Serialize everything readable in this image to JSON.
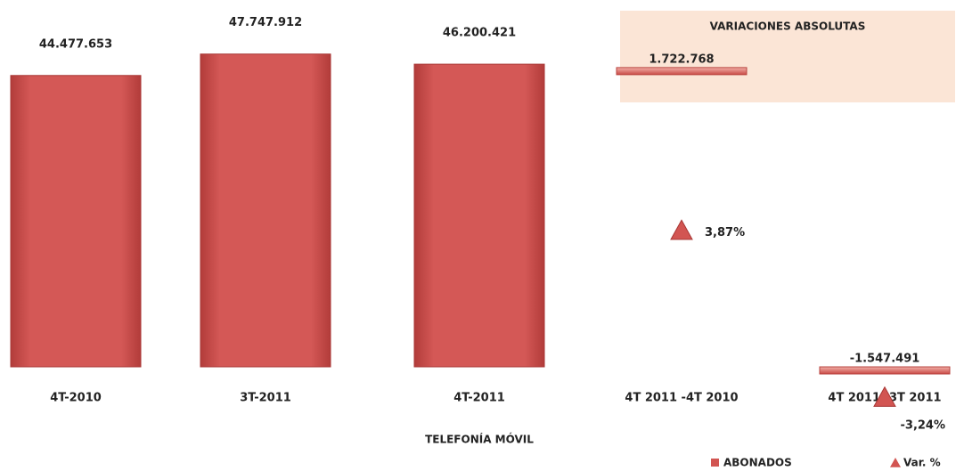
{
  "chart_data": [
    {
      "type": "bar",
      "x_label": "TELEFONÍA MÓVIL",
      "categories": [
        "4T-2010",
        "3T-2011",
        "4T-2011"
      ],
      "series": [
        {
          "name": "ABONADOS",
          "color": "#d25552",
          "values": [
            44477653,
            47747912,
            46200421
          ],
          "value_labels": [
            "44.477.653",
            "47.747.912",
            "46.200.421"
          ]
        }
      ],
      "ylim": [
        0,
        56000000
      ]
    },
    {
      "type": "variation",
      "title": "VARIACIONES ABSOLUTAS",
      "categories": [
        "4T 2011 -4T 2010",
        "4T 2011 -3T 2011"
      ],
      "series": [
        {
          "name": "ABONADOS",
          "color": "#d25552",
          "values": [
            1722768,
            -1547491
          ],
          "value_labels": [
            "1.722.768",
            "-1.547.491"
          ]
        },
        {
          "name": "Var. %",
          "color": "#d25552",
          "axis": "y2",
          "values": [
            3.87,
            -3.24
          ],
          "value_labels": [
            "3,87%",
            "-3,24%"
          ]
        }
      ],
      "ylim": [
        -2170000,
        2500000
      ],
      "y2lim": [
        -4.5,
        13.7
      ],
      "legend": "bottom-right"
    }
  ]
}
